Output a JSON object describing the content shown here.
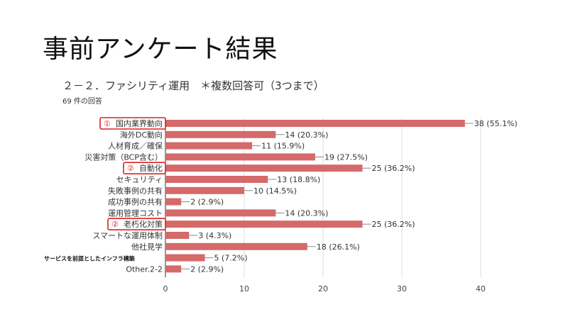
{
  "slide": {
    "title": "事前アンケート結果",
    "subtitle": "２－２．ファシリティ運用　＊複数回答可（3つまで）",
    "response_count": "69 件の回答"
  },
  "chart_data": {
    "type": "bar",
    "orientation": "horizontal",
    "categories": [
      "国内業界動向",
      "海外DC動向",
      "人材育成／確保",
      "災害対策（BCP含む）",
      "自動化",
      "セキュリティ",
      "失敗事例の共有",
      "成功事例の共有",
      "運用管理コスト",
      "老朽化対策",
      "スマートな運用体制",
      "他社見学",
      "サービスを前提としたインフラ構築",
      "Other.2-2"
    ],
    "values": [
      38,
      14,
      11,
      19,
      25,
      13,
      10,
      2,
      14,
      25,
      3,
      18,
      5,
      2
    ],
    "data_labels": [
      "38 (55.1%)",
      "14 (20.3%)",
      "11 (15.9%)",
      "19 (27.5%)",
      "25 (36.2%)",
      "13 (18.8%)",
      "10 (14.5%)",
      "2 (2.9%)",
      "14 (20.3%)",
      "25 (36.2%)",
      "3 (4.3%)",
      "18 (26.1%)",
      "5 (7.2%)",
      "2 (2.9%)"
    ],
    "highlights": [
      {
        "category": "国内業界動向",
        "marker": "①"
      },
      {
        "category": "自動化",
        "marker": "②"
      },
      {
        "category": "老朽化対策",
        "marker": "②"
      }
    ],
    "xlim": [
      0,
      40
    ],
    "xticks": [
      "0",
      "10",
      "20",
      "30",
      "40"
    ],
    "grid": true,
    "bar_color": "#d46a6a",
    "highlight_color": "#e02020"
  }
}
